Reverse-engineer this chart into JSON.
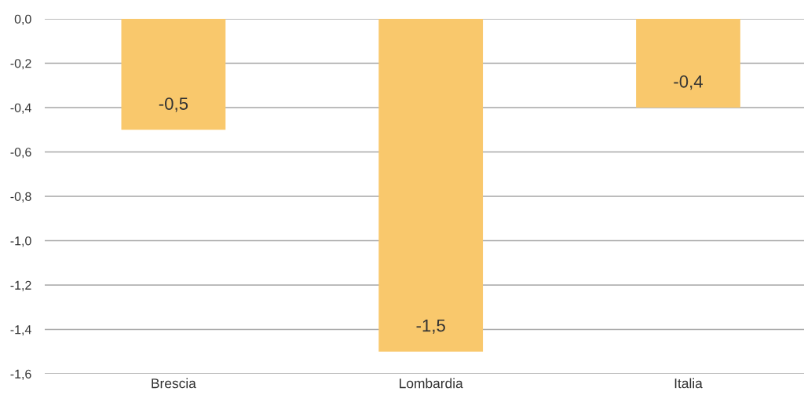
{
  "chart_data": {
    "type": "bar",
    "categories": [
      "Brescia",
      "Lombardia",
      "Italia"
    ],
    "values": [
      -0.5,
      -1.5,
      -0.4
    ],
    "value_labels": [
      "-0,5",
      "-1,5",
      "-0,4"
    ],
    "color": "#f9c86c",
    "ylim": [
      -1.6,
      0
    ],
    "yticks": [
      {
        "value": 0,
        "label": "0,0"
      },
      {
        "value": -0.2,
        "label": "-0,2"
      },
      {
        "value": -0.4,
        "label": "-0,4"
      },
      {
        "value": -0.6,
        "label": "-0,6"
      },
      {
        "value": -0.8,
        "label": "-0,8"
      },
      {
        "value": -1.0,
        "label": "-1,0"
      },
      {
        "value": -1.2,
        "label": "-1,2"
      },
      {
        "value": -1.4,
        "label": "-1,4"
      },
      {
        "value": -1.6,
        "label": "-1,6"
      }
    ],
    "grid": "y"
  }
}
